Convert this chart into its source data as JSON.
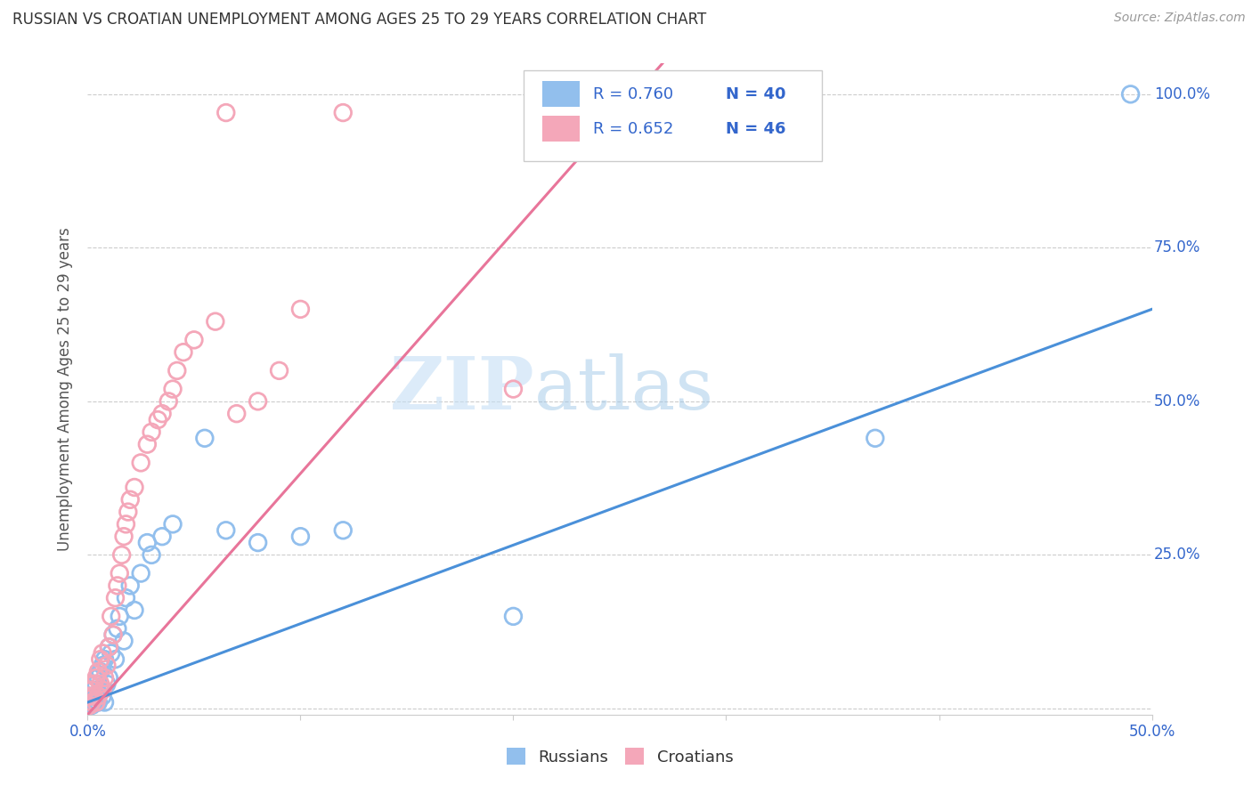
{
  "title": "RUSSIAN VS CROATIAN UNEMPLOYMENT AMONG AGES 25 TO 29 YEARS CORRELATION CHART",
  "source": "Source: ZipAtlas.com",
  "ylabel": "Unemployment Among Ages 25 to 29 years",
  "xlim": [
    0.0,
    0.5
  ],
  "ylim": [
    -0.01,
    1.05
  ],
  "xticks": [
    0.0,
    0.1,
    0.2,
    0.3,
    0.4,
    0.5
  ],
  "xticklabels": [
    "0.0%",
    "",
    "",
    "",
    "",
    "50.0%"
  ],
  "yticks": [
    0.0,
    0.25,
    0.5,
    0.75,
    1.0
  ],
  "yticklabels": [
    "",
    "25.0%",
    "50.0%",
    "75.0%",
    "100.0%"
  ],
  "russian_R": 0.76,
  "russian_N": 40,
  "croatian_R": 0.652,
  "croatian_N": 46,
  "russian_color": "#92BFED",
  "croatian_color": "#F4A7B9",
  "russian_line_color": "#4A90D9",
  "croatian_line_color": "#E8759A",
  "watermark_zip": "ZIP",
  "watermark_atlas": "atlas",
  "background_color": "#FFFFFF",
  "grid_color": "#CCCCCC",
  "legend_color": "#3366CC",
  "tick_color": "#3366CC",
  "russians_x": [
    0.001,
    0.002,
    0.002,
    0.003,
    0.003,
    0.004,
    0.004,
    0.005,
    0.005,
    0.006,
    0.006,
    0.007,
    0.007,
    0.008,
    0.008,
    0.009,
    0.01,
    0.01,
    0.011,
    0.012,
    0.013,
    0.014,
    0.015,
    0.017,
    0.018,
    0.02,
    0.022,
    0.025,
    0.028,
    0.03,
    0.035,
    0.04,
    0.055,
    0.065,
    0.08,
    0.1,
    0.12,
    0.2,
    0.37,
    0.49
  ],
  "russians_y": [
    0.01,
    0.02,
    0.005,
    0.03,
    0.01,
    0.04,
    0.02,
    0.05,
    0.01,
    0.06,
    0.03,
    0.07,
    0.02,
    0.08,
    0.01,
    0.04,
    0.1,
    0.05,
    0.09,
    0.12,
    0.08,
    0.13,
    0.15,
    0.11,
    0.18,
    0.2,
    0.16,
    0.22,
    0.27,
    0.25,
    0.28,
    0.3,
    0.44,
    0.29,
    0.27,
    0.28,
    0.29,
    0.15,
    0.44,
    1.0
  ],
  "croatians_x": [
    0.001,
    0.001,
    0.002,
    0.002,
    0.003,
    0.003,
    0.004,
    0.004,
    0.005,
    0.005,
    0.006,
    0.006,
    0.007,
    0.007,
    0.008,
    0.009,
    0.01,
    0.011,
    0.012,
    0.013,
    0.014,
    0.015,
    0.016,
    0.017,
    0.018,
    0.019,
    0.02,
    0.022,
    0.025,
    0.028,
    0.03,
    0.033,
    0.035,
    0.038,
    0.04,
    0.042,
    0.045,
    0.05,
    0.06,
    0.065,
    0.07,
    0.08,
    0.09,
    0.1,
    0.12,
    0.2
  ],
  "croatians_y": [
    0.005,
    0.02,
    0.01,
    0.03,
    0.02,
    0.04,
    0.01,
    0.05,
    0.02,
    0.06,
    0.04,
    0.08,
    0.03,
    0.09,
    0.05,
    0.07,
    0.1,
    0.15,
    0.12,
    0.18,
    0.2,
    0.22,
    0.25,
    0.28,
    0.3,
    0.32,
    0.34,
    0.36,
    0.4,
    0.43,
    0.45,
    0.47,
    0.48,
    0.5,
    0.52,
    0.55,
    0.58,
    0.6,
    0.63,
    0.97,
    0.48,
    0.5,
    0.55,
    0.65,
    0.97,
    0.52
  ],
  "russian_trend_x0": 0.0,
  "russian_trend_y0": 0.01,
  "russian_trend_x1": 0.5,
  "russian_trend_y1": 0.65,
  "croatian_trend_x0": 0.0,
  "croatian_trend_y0": -0.01,
  "croatian_trend_x1": 0.27,
  "croatian_trend_y1": 1.05
}
